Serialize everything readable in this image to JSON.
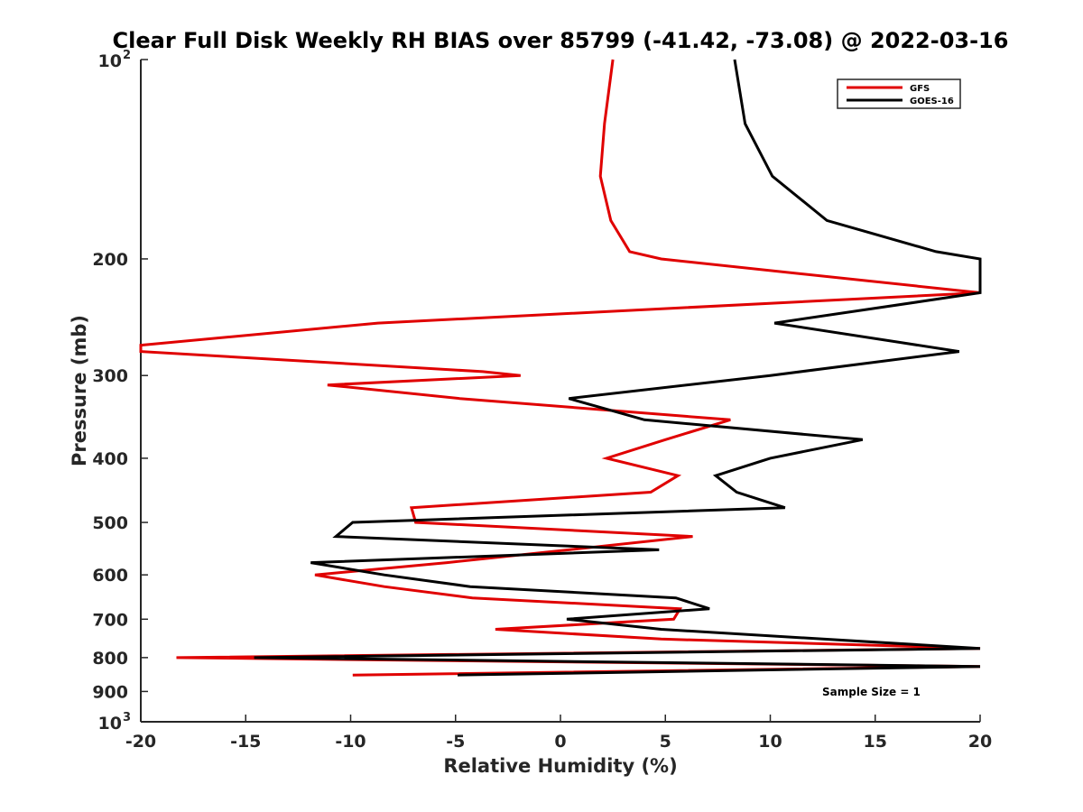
{
  "chart_data": {
    "type": "line",
    "title": "Clear Full Disk Weekly RH BIAS over 85799 (-41.42, -73.08) @ 2022-03-16",
    "xlabel": "Relative Humidity (%)",
    "ylabel": "Pressure (mb)",
    "xlim": [
      -20,
      20
    ],
    "ylim": [
      100,
      1000
    ],
    "y_scale": "log",
    "y_reversed": true,
    "grid": false,
    "legend_placement": "top-right",
    "x_ticks": [
      "-20",
      "-15",
      "-10",
      "-5",
      "0",
      "5",
      "10",
      "15",
      "20"
    ],
    "y_ticks": [
      {
        "value": 100,
        "base": "10",
        "exp": "2"
      },
      {
        "value": 200,
        "label": "200"
      },
      {
        "value": 300,
        "label": "300"
      },
      {
        "value": 400,
        "label": "400"
      },
      {
        "value": 500,
        "label": "500"
      },
      {
        "value": 600,
        "label": "600"
      },
      {
        "value": 700,
        "label": "700"
      },
      {
        "value": 800,
        "label": "800"
      },
      {
        "value": 900,
        "label": "900"
      },
      {
        "value": 1000,
        "base": "10",
        "exp": "3"
      }
    ],
    "annotation": "Sample Size = 1",
    "series": [
      {
        "name": "GFS",
        "color": "#e00000",
        "points": [
          [
            2.5,
            100
          ],
          [
            2.1,
            125
          ],
          [
            1.9,
            150
          ],
          [
            2.4,
            175
          ],
          [
            3.3,
            195
          ],
          [
            4.8,
            200
          ],
          [
            20,
            225
          ],
          [
            -8.7,
            250
          ],
          [
            -20,
            270
          ],
          [
            -20,
            276
          ],
          [
            -3.7,
            296
          ],
          [
            -1.9,
            300
          ],
          [
            -11.1,
            310
          ],
          [
            -4.8,
            325
          ],
          [
            8.1,
            350
          ],
          [
            5,
            375
          ],
          [
            2.2,
            400
          ],
          [
            5.6,
            425
          ],
          [
            4.3,
            450
          ],
          [
            -7.1,
            475
          ],
          [
            -6.9,
            500
          ],
          [
            6.3,
            525
          ],
          [
            0.4,
            550
          ],
          [
            -5.4,
            575
          ],
          [
            -11.7,
            600
          ],
          [
            -8.4,
            625
          ],
          [
            -4.2,
            650
          ],
          [
            5.7,
            675
          ],
          [
            5.4,
            700
          ],
          [
            -3.1,
            725
          ],
          [
            4.8,
            750
          ],
          [
            20,
            775
          ],
          [
            -18.3,
            800
          ],
          [
            20,
            825
          ],
          [
            -9.9,
            850
          ]
        ]
      },
      {
        "name": "GOES-16",
        "color": "#000000",
        "points": [
          [
            8.3,
            100
          ],
          [
            8.8,
            125
          ],
          [
            10.1,
            150
          ],
          [
            12.7,
            175
          ],
          [
            17.9,
            195
          ],
          [
            20,
            200
          ],
          [
            20,
            225
          ],
          [
            10.2,
            250
          ],
          [
            19,
            276
          ],
          [
            10,
            300
          ],
          [
            0.4,
            325
          ],
          [
            4,
            350
          ],
          [
            14.4,
            375
          ],
          [
            10.0,
            400
          ],
          [
            7.4,
            425
          ],
          [
            8.4,
            450
          ],
          [
            10.7,
            475
          ],
          [
            -9.9,
            500
          ],
          [
            -10.7,
            525
          ],
          [
            4.7,
            550
          ],
          [
            -11.9,
            575
          ],
          [
            -8.4,
            600
          ],
          [
            -4.3,
            625
          ],
          [
            5.5,
            650
          ],
          [
            7.1,
            675
          ],
          [
            0.3,
            700
          ],
          [
            4.8,
            725
          ],
          [
            20,
            775
          ],
          [
            -14.6,
            800
          ],
          [
            20,
            825
          ],
          [
            -4.9,
            850
          ]
        ]
      }
    ]
  }
}
